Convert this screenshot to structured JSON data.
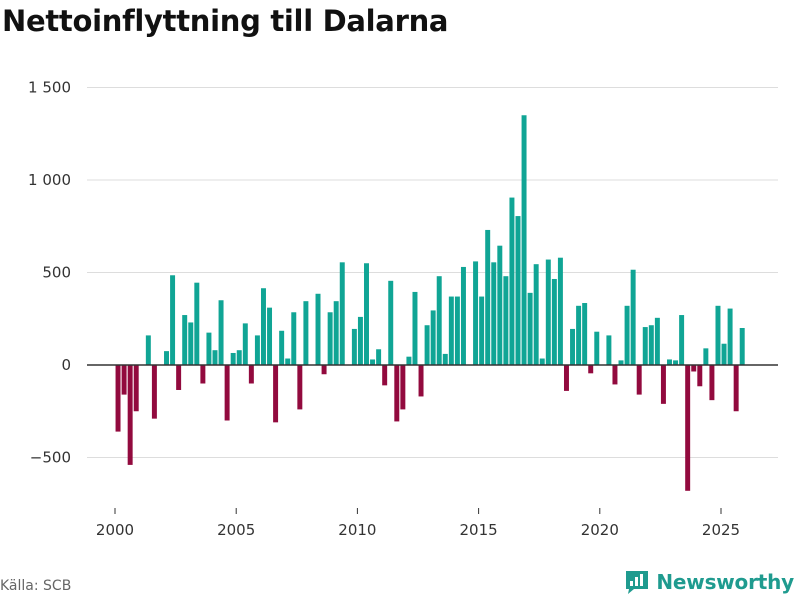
{
  "title": "Nettoinflyttning till Dalarna",
  "source": "Källa: SCB",
  "brand": {
    "name": "Newsworthy",
    "icon": "newsworthy-logo-icon"
  },
  "colors": {
    "positive": "#10a595",
    "negative": "#920a3e",
    "grid": "#dddddd",
    "zero": "#333333",
    "brand": "#1f9b8f"
  },
  "chart_data": {
    "type": "bar",
    "title": "Nettoinflyttning till Dalarna",
    "xlabel": "",
    "ylabel": "",
    "ylim": [
      -700,
      1600
    ],
    "xlim": [
      1999.4,
      2026.6
    ],
    "y_ticks": [
      -500,
      0,
      500,
      1000,
      1500
    ],
    "y_tick_labels": [
      "−500",
      "0",
      "500",
      "1 000",
      "1 500"
    ],
    "x_ticks": [
      2000,
      2005,
      2010,
      2015,
      2020,
      2025
    ],
    "x_tick_labels": [
      "2000",
      "2005",
      "2010",
      "2015",
      "2020",
      "2025"
    ],
    "grid": true,
    "frequency": "quarterly",
    "start_year": 2000,
    "values": [
      -360,
      -160,
      -540,
      -250,
      0,
      160,
      -290,
      0,
      75,
      485,
      -135,
      270,
      230,
      445,
      -100,
      175,
      80,
      350,
      -300,
      65,
      80,
      225,
      -100,
      160,
      415,
      310,
      -310,
      185,
      35,
      285,
      -240,
      345,
      0,
      385,
      -50,
      285,
      345,
      555,
      0,
      195,
      260,
      550,
      30,
      85,
      -110,
      455,
      -305,
      -240,
      45,
      395,
      -170,
      215,
      295,
      480,
      60,
      370,
      370,
      530,
      0,
      560,
      370,
      730,
      555,
      645,
      480,
      905,
      805,
      1350,
      390,
      545,
      35,
      570,
      465,
      580,
      -140,
      195,
      320,
      335,
      -45,
      180,
      0,
      160,
      -105,
      25,
      320,
      515,
      -160,
      205,
      215,
      255,
      -210,
      30,
      25,
      270,
      -680,
      -35,
      -115,
      90,
      -190,
      320,
      115,
      305,
      -250,
      200
    ]
  }
}
